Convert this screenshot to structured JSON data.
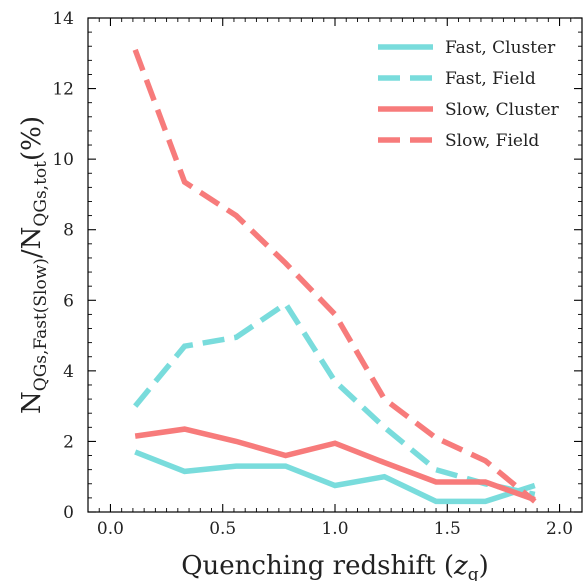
{
  "chart_data": {
    "type": "line",
    "xlabel": "Quenching redshift (z_q)",
    "ylabel": "N_QGs,Fast(Slow)/N_QGs,tot(%)",
    "xlim": [
      -0.1,
      2.1
    ],
    "ylim": [
      0,
      14
    ],
    "xticks": [
      0.0,
      0.5,
      1.0,
      1.5,
      2.0
    ],
    "xtick_labels": [
      "0.0",
      "0.5",
      "1.0",
      "1.5",
      "2.0"
    ],
    "yticks": [
      0,
      2,
      4,
      6,
      8,
      10,
      12,
      14
    ],
    "ytick_labels": [
      "0",
      "2",
      "4",
      "6",
      "8",
      "10",
      "12",
      "14"
    ],
    "grid": false,
    "legend_position": "top-right",
    "x": [
      0.11,
      0.33,
      0.56,
      0.78,
      1.0,
      1.22,
      1.45,
      1.67,
      1.89
    ],
    "series": [
      {
        "name": "Fast, Cluster",
        "color": "#79dcdc",
        "style": "solid",
        "values": [
          1.7,
          1.15,
          1.3,
          1.3,
          0.75,
          1.0,
          0.3,
          0.3,
          0.75
        ]
      },
      {
        "name": "Fast, Field",
        "color": "#79dcdc",
        "style": "dashed",
        "values": [
          3.0,
          4.7,
          4.95,
          5.9,
          3.7,
          2.4,
          1.2,
          0.8,
          0.5
        ]
      },
      {
        "name": "Slow, Cluster",
        "color": "#f77b7b",
        "style": "solid",
        "values": [
          2.15,
          2.35,
          2.0,
          1.6,
          1.95,
          1.4,
          0.85,
          0.85,
          0.35
        ]
      },
      {
        "name": "Slow, Field",
        "color": "#f77b7b",
        "style": "dashed",
        "values": [
          13.1,
          9.35,
          8.4,
          7.05,
          5.6,
          3.2,
          2.1,
          1.45,
          0.3
        ]
      }
    ]
  }
}
